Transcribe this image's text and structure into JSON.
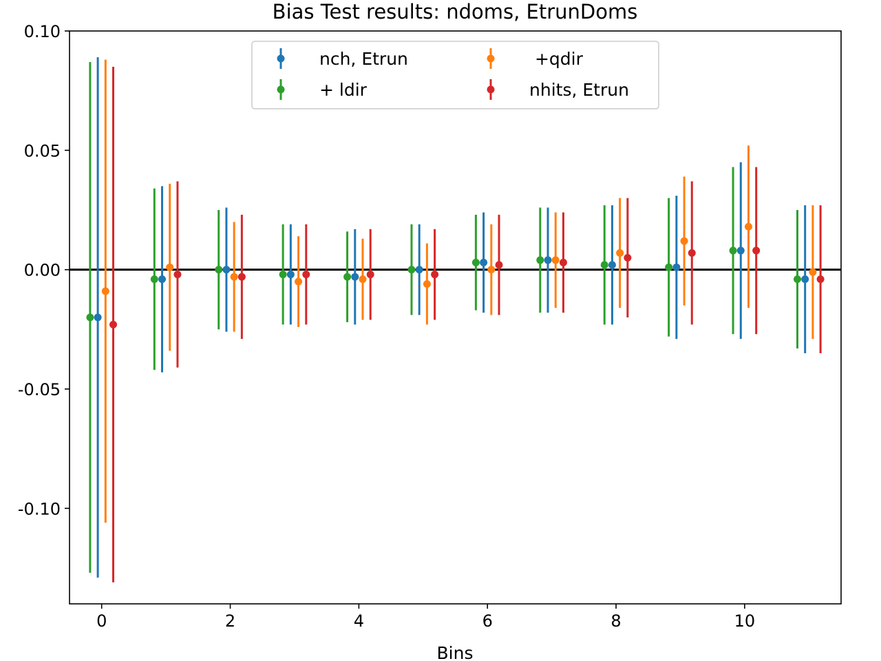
{
  "chart_data": {
    "type": "errorbar",
    "title": "Bias Test results: ndoms, EtrunDoms",
    "xlabel": "Bins",
    "ylabel": "",
    "xlim": [
      -0.5,
      11.5
    ],
    "ylim": [
      -0.14,
      0.1
    ],
    "xticks": [
      0,
      2,
      4,
      6,
      8,
      10
    ],
    "xtick_labels": [
      "0",
      "2",
      "4",
      "6",
      "8",
      "10"
    ],
    "yticks": [
      -0.1,
      -0.05,
      0.0,
      0.05,
      0.1
    ],
    "ytick_labels": [
      "-0.10",
      "-0.05",
      "0.00",
      "0.05",
      "0.10"
    ],
    "grid": false,
    "reference_line": {
      "y": 0.0,
      "color": "#000000"
    },
    "legend": {
      "placement": "top-center",
      "columns": 2
    },
    "series": [
      {
        "name": "+ ldir",
        "color": "#2ca02c",
        "x_offset": -0.18,
        "values": [
          -0.02,
          -0.004,
          0.0,
          -0.002,
          -0.003,
          0.0,
          0.003,
          0.004,
          0.002,
          0.001,
          0.008,
          -0.004
        ],
        "lower": [
          -0.127,
          -0.042,
          -0.025,
          -0.023,
          -0.022,
          -0.019,
          -0.017,
          -0.018,
          -0.023,
          -0.028,
          -0.027,
          -0.033
        ],
        "upper": [
          0.087,
          0.034,
          0.025,
          0.019,
          0.016,
          0.019,
          0.023,
          0.026,
          0.027,
          0.03,
          0.043,
          0.025
        ]
      },
      {
        "name": "nch, Etrun",
        "color": "#1f77b4",
        "x_offset": -0.06,
        "values": [
          -0.02,
          -0.004,
          0.0,
          -0.002,
          -0.003,
          0.0,
          0.003,
          0.004,
          0.002,
          0.001,
          0.008,
          -0.004
        ],
        "lower": [
          -0.129,
          -0.043,
          -0.026,
          -0.023,
          -0.023,
          -0.019,
          -0.018,
          -0.018,
          -0.023,
          -0.029,
          -0.029,
          -0.035
        ],
        "upper": [
          0.089,
          0.035,
          0.026,
          0.019,
          0.017,
          0.019,
          0.024,
          0.026,
          0.027,
          0.031,
          0.045,
          0.027
        ]
      },
      {
        "name": " +qdir",
        "color": "#ff7f0e",
        "x_offset": 0.06,
        "values": [
          -0.009,
          0.001,
          -0.003,
          -0.005,
          -0.004,
          -0.006,
          0.0,
          0.004,
          0.007,
          0.012,
          0.018,
          -0.001
        ],
        "lower": [
          -0.106,
          -0.034,
          -0.026,
          -0.024,
          -0.021,
          -0.023,
          -0.019,
          -0.016,
          -0.016,
          -0.015,
          -0.016,
          -0.029
        ],
        "upper": [
          0.088,
          0.036,
          0.02,
          0.014,
          0.013,
          0.011,
          0.019,
          0.024,
          0.03,
          0.039,
          0.052,
          0.027
        ]
      },
      {
        "name": "nhits, Etrun",
        "color": "#d62728",
        "x_offset": 0.18,
        "values": [
          -0.023,
          -0.002,
          -0.003,
          -0.002,
          -0.002,
          -0.002,
          0.002,
          0.003,
          0.005,
          0.007,
          0.008,
          -0.004
        ],
        "lower": [
          -0.131,
          -0.041,
          -0.029,
          -0.023,
          -0.021,
          -0.021,
          -0.019,
          -0.018,
          -0.02,
          -0.023,
          -0.027,
          -0.035
        ],
        "upper": [
          0.085,
          0.037,
          0.023,
          0.019,
          0.017,
          0.017,
          0.023,
          0.024,
          0.03,
          0.037,
          0.043,
          0.027
        ]
      }
    ],
    "legend_order": [
      1,
      0,
      2,
      3
    ]
  }
}
